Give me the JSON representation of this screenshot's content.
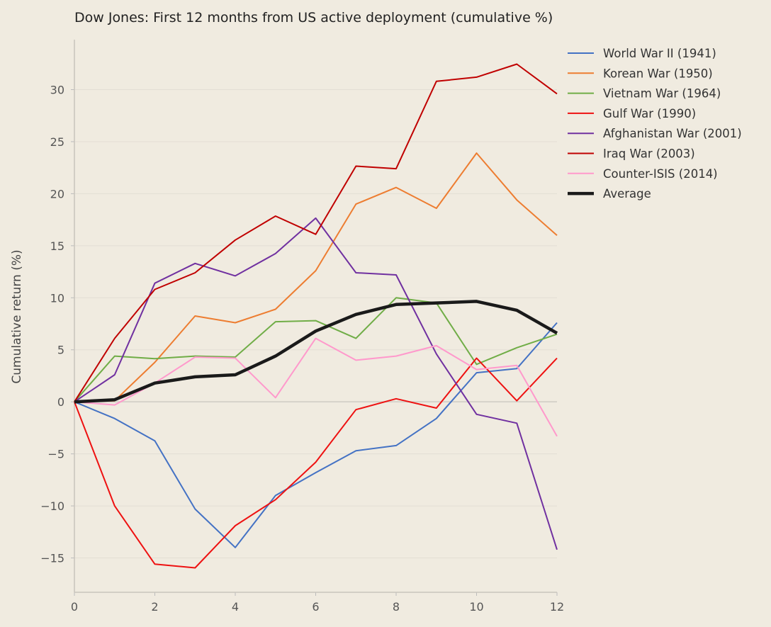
{
  "chart_data": {
    "type": "line",
    "title": "Dow Jones: First 12 months from US active deployment (cumulative %)",
    "xlabel": "",
    "ylabel": "Cumulative return (%)",
    "xlim": [
      0,
      12
    ],
    "ylim": [
      -18.3,
      34.8
    ],
    "grid": "horizontal",
    "legend_position": "top-right-outside",
    "x": [
      0,
      1,
      2,
      3,
      4,
      5,
      6,
      7,
      8,
      9,
      10,
      11,
      12
    ],
    "xticks": [
      0,
      2,
      4,
      6,
      8,
      10,
      12
    ],
    "xtick_labels": [
      "0",
      "2",
      "4",
      "6",
      "8",
      "10",
      "12"
    ],
    "yticks": [
      -15,
      -10,
      -5,
      0,
      5,
      10,
      15,
      20,
      25,
      30
    ],
    "ytick_labels": [
      "−15",
      "−10",
      "−5",
      "0",
      "5",
      "10",
      "15",
      "20",
      "25",
      "30"
    ],
    "series": [
      {
        "name": "World War II (1941)",
        "color": "#4472c4",
        "width": 2,
        "values": [
          0,
          -1.6,
          -3.75,
          -10.3,
          -14.0,
          -9.0,
          -6.8,
          -4.7,
          -4.2,
          -1.6,
          2.8,
          3.2,
          7.6
        ]
      },
      {
        "name": "Korean War (1950)",
        "color": "#ed7d31",
        "width": 2,
        "values": [
          0,
          0.1,
          3.8,
          8.25,
          7.6,
          8.9,
          12.6,
          19.0,
          20.6,
          18.6,
          23.9,
          19.4,
          16.0
        ]
      },
      {
        "name": "Vietnam War (1964)",
        "color": "#70ad47",
        "width": 2,
        "values": [
          0,
          4.4,
          4.15,
          4.4,
          4.3,
          7.7,
          7.8,
          6.1,
          10.0,
          9.5,
          3.6,
          5.2,
          6.5
        ]
      },
      {
        "name": "Gulf War (1990)",
        "color": "#ee1111",
        "width": 2,
        "values": [
          0,
          -10.0,
          -15.6,
          -15.95,
          -11.9,
          -9.4,
          -5.8,
          -0.75,
          0.3,
          -0.6,
          4.2,
          0.1,
          4.2
        ]
      },
      {
        "name": "Afghanistan War (2001)",
        "color": "#7030a0",
        "width": 2,
        "values": [
          0,
          2.6,
          11.4,
          13.3,
          12.1,
          14.25,
          17.65,
          12.4,
          12.2,
          4.6,
          -1.2,
          -2.05,
          -14.2
        ]
      },
      {
        "name": "Iraq War (2003)",
        "color": "#c00000",
        "width": 2,
        "values": [
          0,
          6.1,
          10.8,
          12.4,
          15.55,
          17.85,
          16.1,
          22.65,
          22.4,
          30.8,
          31.2,
          32.45,
          29.6
        ]
      },
      {
        "name": "Counter-ISIS (2014)",
        "color": "#ff99cc",
        "width": 2,
        "values": [
          0,
          -0.3,
          1.8,
          4.3,
          4.2,
          0.4,
          6.1,
          4.0,
          4.4,
          5.4,
          3.1,
          3.5,
          -3.3
        ]
      },
      {
        "name": "Average",
        "color": "#1a1a1a",
        "width": 4.5,
        "values": [
          0,
          0.2,
          1.8,
          2.4,
          2.6,
          4.4,
          6.8,
          8.4,
          9.35,
          9.5,
          9.65,
          8.8,
          6.6
        ]
      }
    ]
  }
}
